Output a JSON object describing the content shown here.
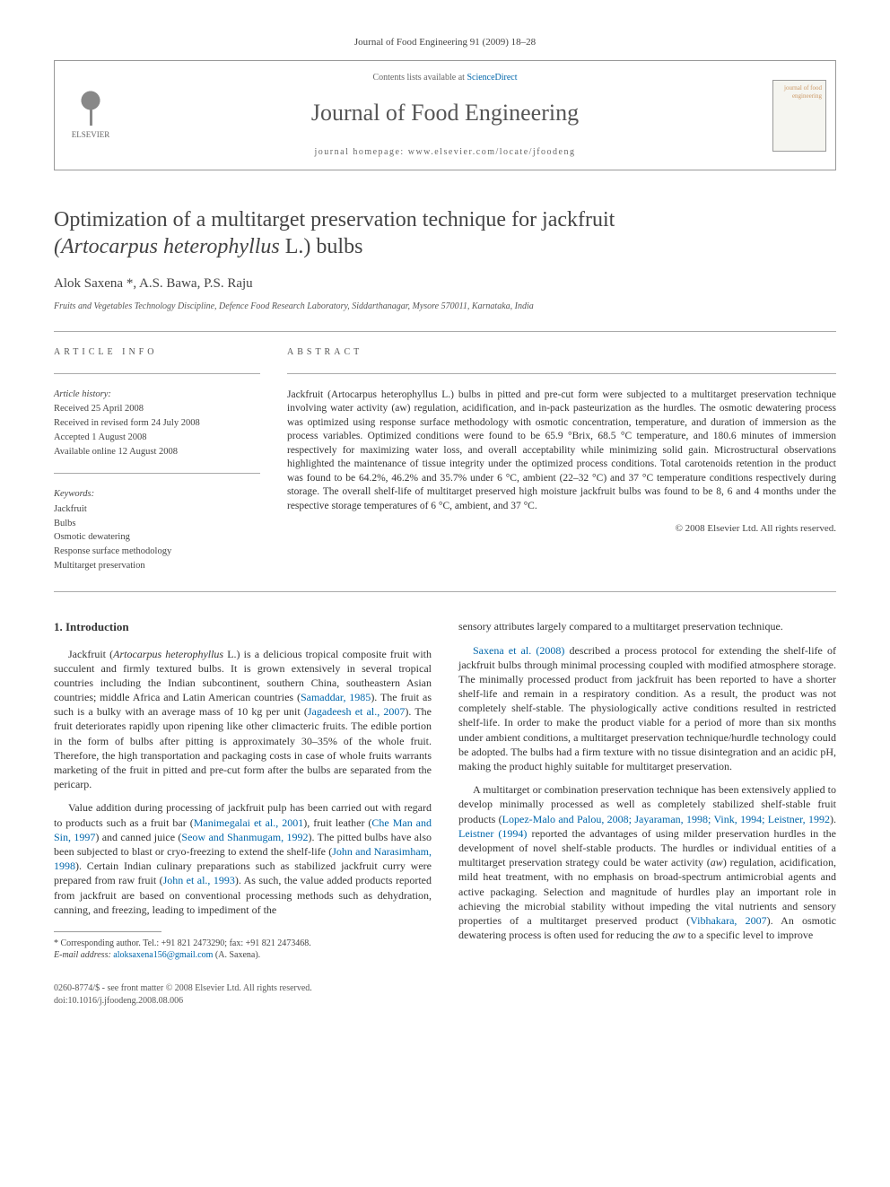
{
  "journal_ref": "Journal of Food Engineering 91 (2009) 18–28",
  "header": {
    "contents_prefix": "Contents lists available at ",
    "sciencedirect": "ScienceDirect",
    "journal_name": "Journal of Food Engineering",
    "homepage_prefix": "journal homepage: ",
    "homepage_url": "www.elsevier.com/locate/jfoodeng",
    "publisher": "ELSEVIER",
    "cover_text": "journal of food engineering"
  },
  "title_line1": "Optimization of a multitarget preservation technique for jackfruit",
  "title_line2_italic": "(Artocarpus heterophyllus",
  "title_line2_rest": " L.) bulbs",
  "authors": "Alok Saxena *, A.S. Bawa, P.S. Raju",
  "affiliation": "Fruits and Vegetables Technology Discipline, Defence Food Research Laboratory, Siddarthanagar, Mysore 570011, Karnataka, India",
  "info": {
    "label": "ARTICLE INFO",
    "history_heading": "Article history:",
    "received": "Received 25 April 2008",
    "revised": "Received in revised form 24 July 2008",
    "accepted": "Accepted 1 August 2008",
    "online": "Available online 12 August 2008",
    "keywords_heading": "Keywords:",
    "kw1": "Jackfruit",
    "kw2": "Bulbs",
    "kw3": "Osmotic dewatering",
    "kw4": "Response surface methodology",
    "kw5": "Multitarget preservation"
  },
  "abstract": {
    "label": "ABSTRACT",
    "text": "Jackfruit (Artocarpus heterophyllus L.) bulbs in pitted and pre-cut form were subjected to a multitarget preservation technique involving water activity (aw) regulation, acidification, and in-pack pasteurization as the hurdles. The osmotic dewatering process was optimized using response surface methodology with osmotic concentration, temperature, and duration of immersion as the process variables. Optimized conditions were found to be 65.9 °Brix, 68.5 °C temperature, and 180.6 minutes of immersion respectively for maximizing water loss, and overall acceptability while minimizing solid gain. Microstructural observations highlighted the maintenance of tissue integrity under the optimized process conditions. Total carotenoids retention in the product was found to be 64.2%, 46.2% and 35.7% under 6 °C, ambient (22–32 °C) and 37 °C temperature conditions respectively during storage. The overall shelf-life of multitarget preserved high moisture jackfruit bulbs was found to be 8, 6 and 4 months under the respective storage temperatures of 6 °C, ambient, and 37 °C.",
    "copyright": "© 2008 Elsevier Ltd. All rights reserved."
  },
  "intro": {
    "heading": "1. Introduction",
    "p1a": "Jackfruit (",
    "p1b_italic": "Artocarpus heterophyllus",
    "p1c": " L.) is a delicious tropical composite fruit with succulent and firmly textured bulbs. It is grown extensively in several tropical countries including the Indian subcontinent, southern China, southeastern Asian countries; middle Africa and Latin American countries (",
    "p1_cite1": "Samaddar, 1985",
    "p1d": "). The fruit as such is a bulky with an average mass of 10 kg per unit (",
    "p1_cite2": "Jagadeesh et al., 2007",
    "p1e": "). The fruit deteriorates rapidly upon ripening like other climacteric fruits. The edible portion in the form of bulbs after pitting is approximately 30–35% of the whole fruit. Therefore, the high transportation and packaging costs in case of whole fruits warrants marketing of the fruit in pitted and pre-cut form after the bulbs are separated from the pericarp.",
    "p2a": "Value addition during processing of jackfruit pulp has been carried out with regard to products such as a fruit bar (",
    "p2_cite1": "Manimegalai et al., 2001",
    "p2b": "), fruit leather (",
    "p2_cite2": "Che Man and Sin, 1997",
    "p2c": ") and canned juice (",
    "p2_cite3": "Seow and Shanmugam, 1992",
    "p2d": "). The pitted bulbs have also been subjected to blast or cryo-freezing to extend the shelf-life (",
    "p2_cite4": "John and Narasimham, 1998",
    "p2e": "). Certain Indian culinary preparations such as stabilized jackfruit curry were prepared from raw fruit (",
    "p2_cite5": "John et al., 1993",
    "p2f": "). As such, the value added products reported from jackfruit are based on conventional processing methods such as dehydration, canning, and freezing, leading to impediment of the",
    "p3": "sensory attributes largely compared to a multitarget preservation technique.",
    "p4_cite1": "Saxena et al. (2008)",
    "p4a": " described a process protocol for extending the shelf-life of jackfruit bulbs through minimal processing coupled with modified atmosphere storage. The minimally processed product from jackfruit has been reported to have a shorter shelf-life and remain in a respiratory condition. As a result, the product was not completely shelf-stable. The physiologically active conditions resulted in restricted shelf-life. In order to make the product viable for a period of more than six months under ambient conditions, a multitarget preservation technique/hurdle technology could be adopted. The bulbs had a firm texture with no tissue disintegration and an acidic pH, making the product highly suitable for multitarget preservation.",
    "p5a": "A multitarget or combination preservation technique has been extensively applied to develop minimally processed as well as completely stabilized shelf-stable fruit products (",
    "p5_cite1": "Lopez-Malo and Palou, 2008; Jayaraman, 1998; Vink, 1994; Leistner, 1992",
    "p5b": "). ",
    "p5_cite2": "Leistner (1994)",
    "p5c": " reported the advantages of using milder preservation hurdles in the development of novel shelf-stable products. The hurdles or individual entities of a multitarget preservation strategy could be water activity (",
    "p5_aw": "aw",
    "p5d": ") regulation, acidification, mild heat treatment, with no emphasis on broad-spectrum antimicrobial agents and active packaging. Selection and magnitude of hurdles play an important role in achieving the microbial stability without impeding the vital nutrients and sensory properties of a multitarget preserved product (",
    "p5_cite3": "Vibhakara, 2007",
    "p5e": "). An osmotic dewatering process is often used for reducing the ",
    "p5_aw2": "aw",
    "p5f": " to a specific level to improve"
  },
  "footnote": {
    "corr": "* Corresponding author. Tel.: +91 821 2473290; fax: +91 821 2473468.",
    "email_label": "E-mail address:",
    "email": "aloksaxena156@gmail.com",
    "email_suffix": " (A. Saxena)."
  },
  "bottom": {
    "line1": "0260-8774/$ - see front matter © 2008 Elsevier Ltd. All rights reserved.",
    "line2": "doi:10.1016/j.jfoodeng.2008.08.006"
  }
}
